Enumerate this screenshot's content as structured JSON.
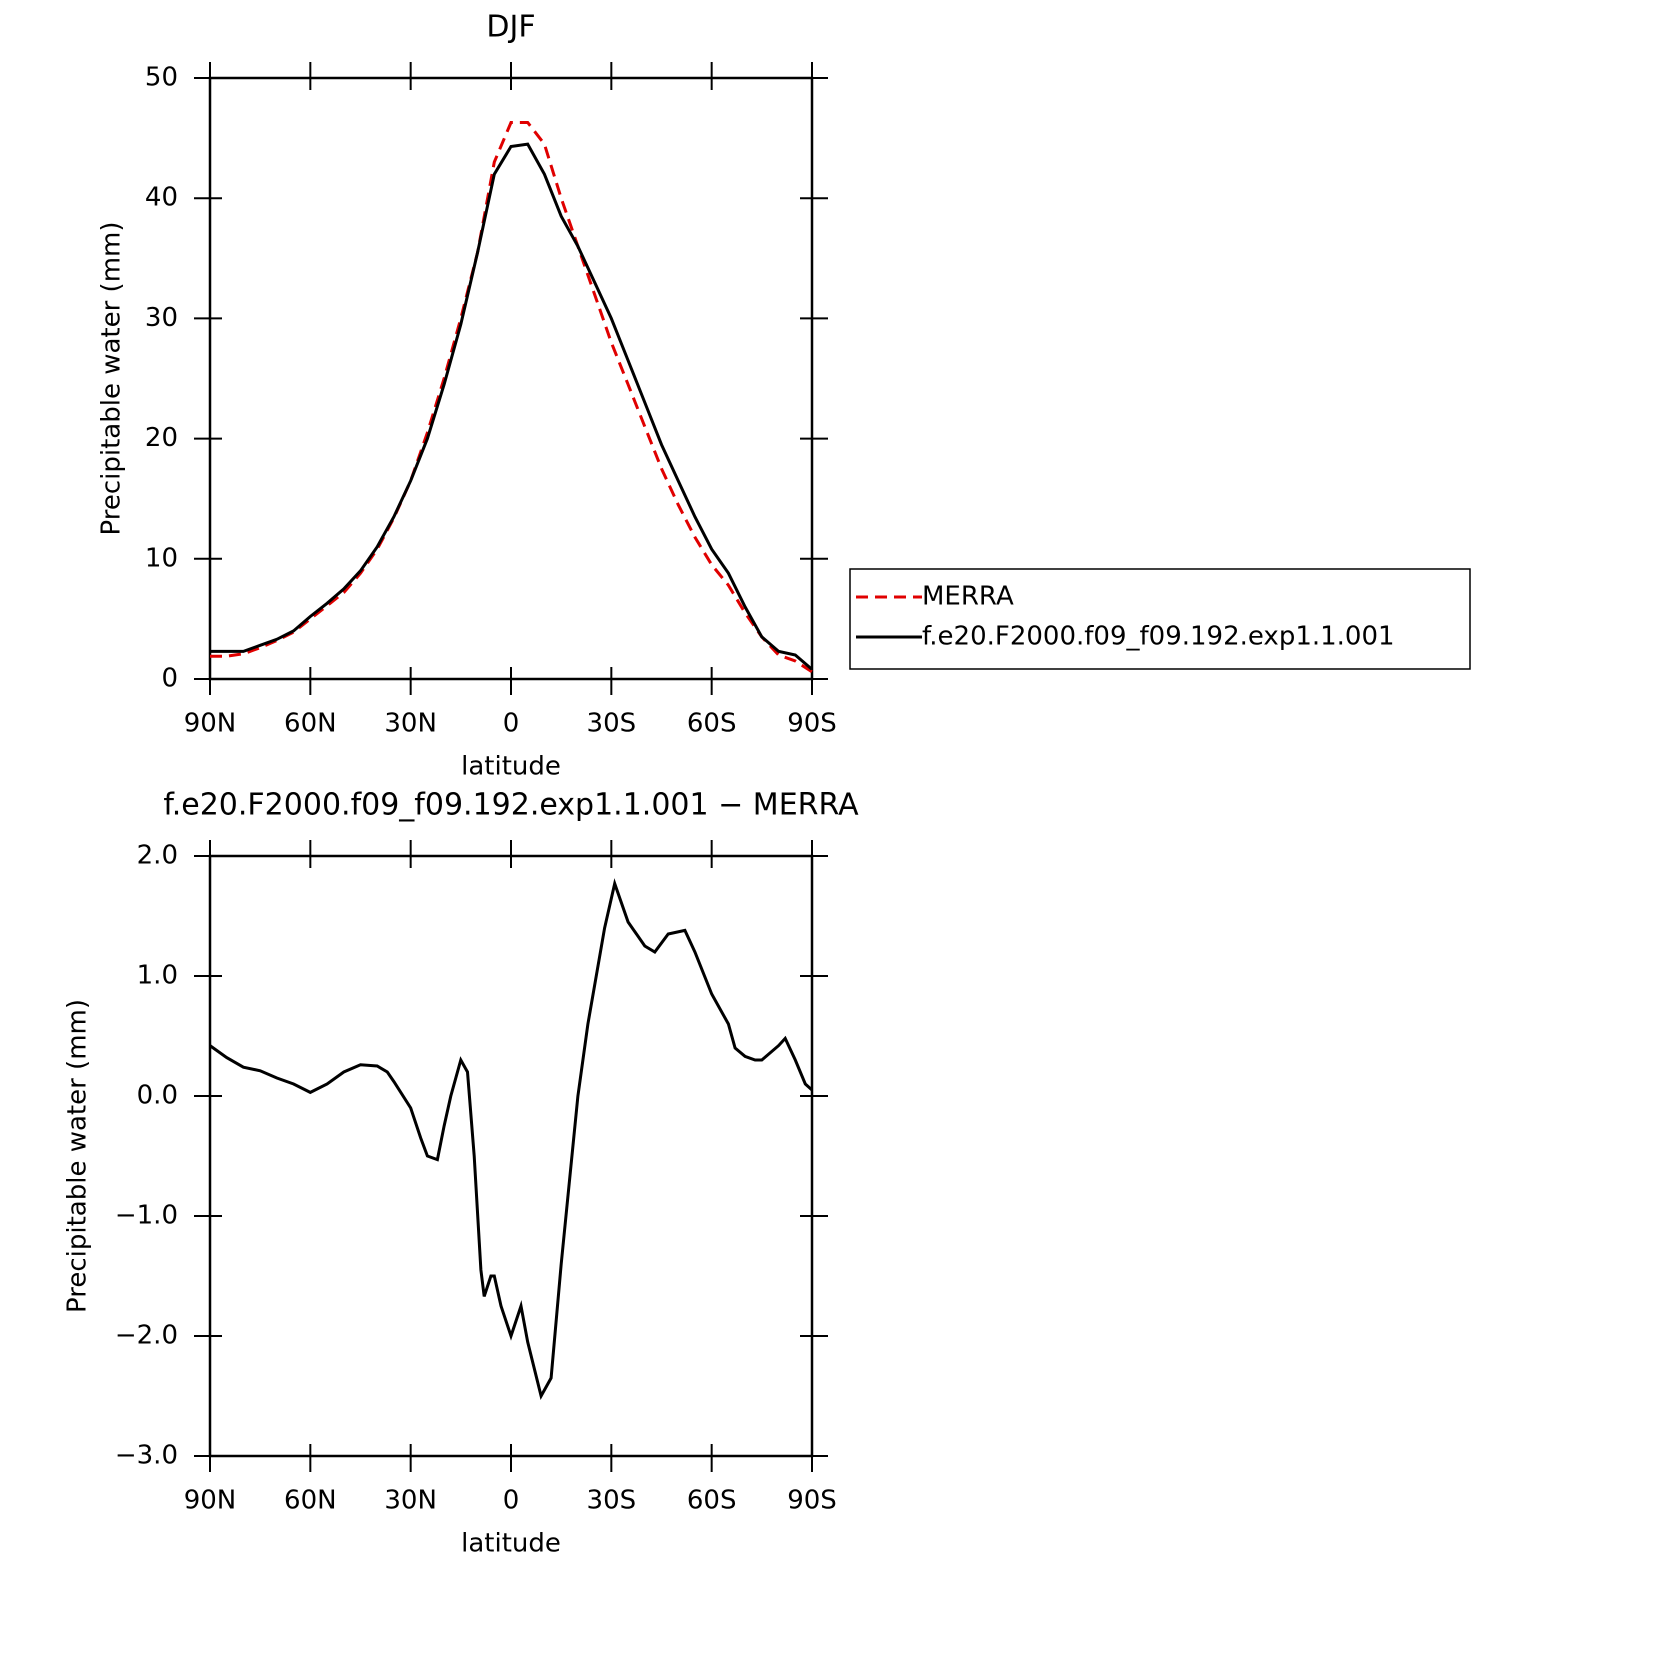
{
  "chart_data": [
    {
      "type": "line",
      "title": "DJF",
      "xlabel": "latitude",
      "ylabel": "Precipitable water (mm)",
      "xlim": [
        90,
        -90
      ],
      "xticks": [
        {
          "value": 90,
          "label": "90N"
        },
        {
          "value": 60,
          "label": "60N"
        },
        {
          "value": 30,
          "label": "30N"
        },
        0,
        {
          "value": -30,
          "label": "30S"
        },
        {
          "value": -60,
          "label": "60S"
        },
        {
          "value": -90,
          "label": "90S"
        }
      ],
      "ylim": [
        0,
        50
      ],
      "yticks": [
        0,
        10,
        20,
        30,
        40,
        50
      ],
      "x": [
        90,
        85,
        80,
        75,
        70,
        65,
        60,
        55,
        50,
        45,
        40,
        35,
        30,
        25,
        20,
        15,
        10,
        5,
        0,
        -5,
        -10,
        -15,
        -20,
        -25,
        -30,
        -35,
        -40,
        -45,
        -50,
        -55,
        -60,
        -65,
        -70,
        -75,
        -80,
        -85,
        -90
      ],
      "legend": "right",
      "series": [
        {
          "name": "MERRA",
          "color": "#e00000",
          "line_style": "dashed",
          "values": [
            1.9,
            1.9,
            2.1,
            2.6,
            3.2,
            3.9,
            5.0,
            6.1,
            7.2,
            8.8,
            10.8,
            13.4,
            16.5,
            20.5,
            25,
            30,
            35.5,
            43,
            46.3,
            46.3,
            44.5,
            40,
            36,
            32,
            28,
            24.5,
            21,
            17.5,
            14.5,
            11.8,
            9.5,
            7.8,
            5.5,
            3.5,
            2.0,
            1.5,
            0.6
          ]
        },
        {
          "name": "f.e20.F2000.f09_f09.192.exp1.1.001",
          "color": "#000000",
          "line_style": "solid",
          "values": [
            2.3,
            2.3,
            2.3,
            2.8,
            3.3,
            4.0,
            5.2,
            6.3,
            7.5,
            9.0,
            11,
            13.5,
            16.5,
            20,
            24.5,
            29.5,
            35.5,
            42,
            44.3,
            44.5,
            42,
            38.5,
            36,
            33,
            30,
            26.5,
            23,
            19.5,
            16.5,
            13.5,
            10.8,
            8.8,
            6.0,
            3.5,
            2.3,
            2.0,
            0.8
          ]
        }
      ]
    },
    {
      "type": "line",
      "title": "f.e20.F2000.f09_f09.192.exp1.1.001 − MERRA",
      "xlabel": "latitude",
      "ylabel": "Precipitable water (mm)",
      "xlim": [
        90,
        -90
      ],
      "xticks": [
        {
          "value": 90,
          "label": "90N"
        },
        {
          "value": 60,
          "label": "60N"
        },
        {
          "value": 30,
          "label": "30N"
        },
        0,
        {
          "value": -30,
          "label": "30S"
        },
        {
          "value": -60,
          "label": "60S"
        },
        {
          "value": -90,
          "label": "90S"
        }
      ],
      "ylim": [
        -3,
        2
      ],
      "yticks": [
        {
          "value": -3,
          "label": "−3.0"
        },
        {
          "value": -2,
          "label": "−2.0"
        },
        {
          "value": -1,
          "label": "−1.0"
        },
        {
          "value": 0,
          "label": "0.0"
        },
        {
          "value": 1,
          "label": "1.0"
        },
        {
          "value": 2,
          "label": "2.0"
        }
      ],
      "x": [
        90,
        85,
        80,
        75,
        70,
        65,
        60,
        55,
        50,
        45,
        40,
        37,
        35,
        30,
        27,
        25,
        22,
        20,
        18,
        15,
        13,
        11,
        9,
        8,
        6,
        5,
        3,
        0,
        -3,
        -5,
        -9,
        -12,
        -15,
        -20,
        -23,
        -28,
        -31,
        -35,
        -40,
        -43,
        -47,
        -52,
        -55,
        -60,
        -65,
        -67,
        -70,
        -73,
        -75,
        -80,
        -82,
        -85,
        -88,
        -90
      ],
      "series": [
        {
          "color": "#000000",
          "line_style": "solid",
          "values": [
            0.42,
            0.32,
            0.24,
            0.21,
            0.15,
            0.1,
            0.03,
            0.1,
            0.2,
            0.26,
            0.25,
            0.2,
            0.12,
            -0.1,
            -0.35,
            -0.5,
            -0.53,
            -0.25,
            0.0,
            0.3,
            0.2,
            -0.5,
            -1.45,
            -1.67,
            -1.5,
            -1.5,
            -1.75,
            -2.0,
            -1.75,
            -2.05,
            -2.5,
            -2.35,
            -1.4,
            0.0,
            0.6,
            1.4,
            1.77,
            1.45,
            1.25,
            1.2,
            1.35,
            1.38,
            1.2,
            0.85,
            0.6,
            0.4,
            0.33,
            0.3,
            0.3,
            0.42,
            0.48,
            0.3,
            0.1,
            0.05
          ]
        }
      ]
    }
  ]
}
